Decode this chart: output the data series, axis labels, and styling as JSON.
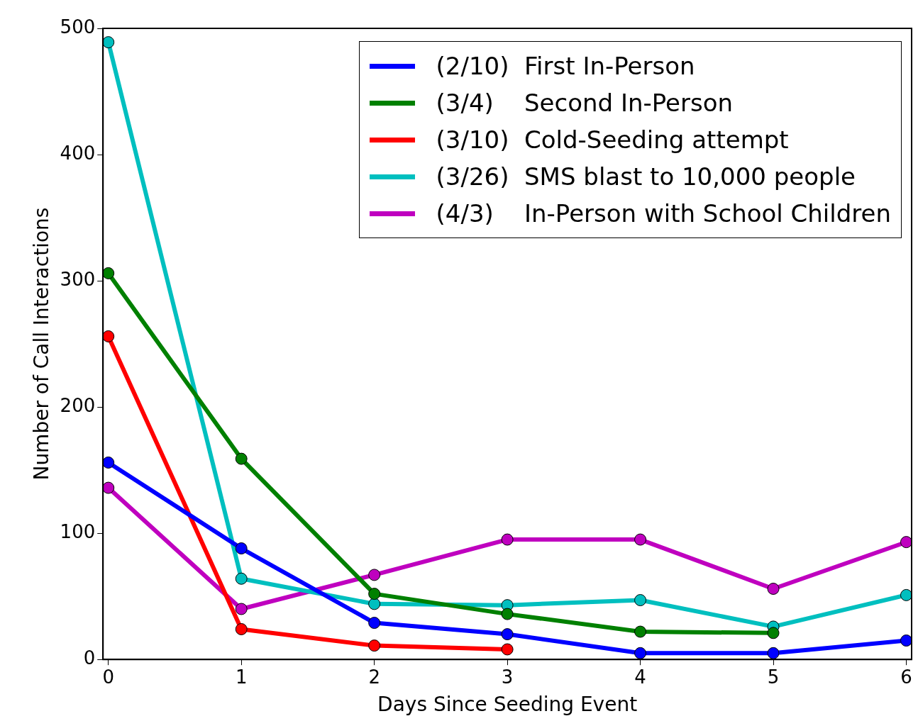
{
  "chart_data": {
    "type": "line",
    "xlabel": "Days Since Seeding Event",
    "ylabel": "Number of Call Interactions",
    "x": [
      0,
      1,
      2,
      3,
      4,
      5,
      6
    ],
    "series": [
      {
        "name": "(2/10)  First In-Person",
        "color": "#0000ff",
        "values": [
          156,
          88,
          29,
          20,
          5,
          5,
          15
        ]
      },
      {
        "name": "(3/4)    Second In-Person",
        "color": "#008000",
        "values": [
          306,
          159,
          52,
          36,
          22,
          21,
          null
        ]
      },
      {
        "name": "(3/10)  Cold-Seeding attempt",
        "color": "#ff0000",
        "values": [
          256,
          24,
          11,
          8,
          null,
          null,
          null
        ]
      },
      {
        "name": "(3/26)  SMS blast to 10,000 people",
        "color": "#00bfbf",
        "values": [
          489,
          64,
          44,
          43,
          47,
          26,
          51
        ]
      },
      {
        "name": "(4/3)    In-Person with School Children",
        "color": "#bf00bf",
        "values": [
          136,
          40,
          67,
          95,
          95,
          56,
          93
        ]
      }
    ],
    "xlim": [
      -0.04,
      6.04
    ],
    "xticks": [
      0,
      1,
      2,
      3,
      4,
      5,
      6
    ],
    "ylim": [
      0,
      500
    ],
    "yticks": [
      0,
      100,
      200,
      300,
      400,
      500
    ],
    "grid": false,
    "legend": "top right",
    "marker": "circle",
    "line_style": "solid"
  }
}
